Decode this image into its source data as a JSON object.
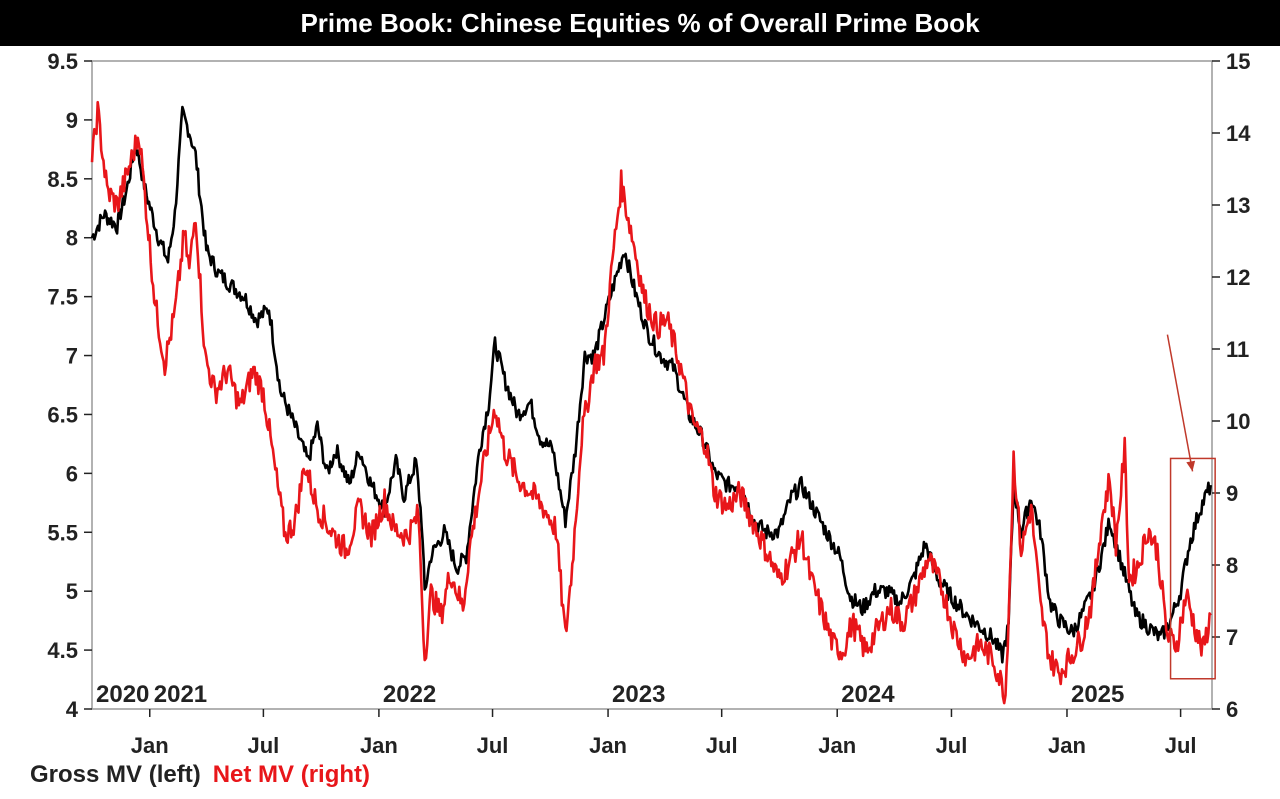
{
  "colors": {
    "gross": "#000000",
    "net": "#e8161a",
    "frame": "#999999",
    "highlight": "#c0392b"
  },
  "chart_data": {
    "type": "line",
    "title": "Prime Book: Chinese Equities % of Overall Prime Book",
    "x_range": [
      "2020-10-01",
      "2025-08-20"
    ],
    "ylim_left": [
      4,
      9.5
    ],
    "ylim_right": [
      6,
      15
    ],
    "yticks_left": [
      "4",
      "4.5",
      "5",
      "5.5",
      "6",
      "6.5",
      "7",
      "7.5",
      "8",
      "8.5",
      "9",
      "9.5"
    ],
    "yticks_right": [
      "6",
      "7",
      "8",
      "9",
      "10",
      "11",
      "12",
      "13",
      "14",
      "15"
    ],
    "month_ticks": [
      {
        "date": "2021-01-01",
        "label": "Jan"
      },
      {
        "date": "2021-07-01",
        "label": "Jul"
      },
      {
        "date": "2022-01-01",
        "label": "Jan"
      },
      {
        "date": "2022-07-01",
        "label": "Jul"
      },
      {
        "date": "2023-01-01",
        "label": "Jan"
      },
      {
        "date": "2023-07-01",
        "label": "Jul"
      },
      {
        "date": "2024-01-01",
        "label": "Jan"
      },
      {
        "date": "2024-07-01",
        "label": "Jul"
      },
      {
        "date": "2025-01-01",
        "label": "Jan"
      },
      {
        "date": "2025-07-01",
        "label": "Jul"
      }
    ],
    "year_labels": [
      {
        "date": "2020-10-01",
        "label": "2020"
      },
      {
        "date": "2021-01-01",
        "label": "2021"
      },
      {
        "date": "2022-01-01",
        "label": "2022"
      },
      {
        "date": "2023-01-01",
        "label": "2023"
      },
      {
        "date": "2024-01-01",
        "label": "2024"
      },
      {
        "date": "2025-01-01",
        "label": "2025"
      }
    ],
    "grid": false,
    "legend_position": "bottom-left",
    "legend": {
      "gross": "Gross MV (left)",
      "net": "Net MV (right)"
    },
    "series": [
      {
        "name": "Gross MV (left)",
        "axis": "left",
        "points": [
          [
            "2020-10-01",
            8.0
          ],
          [
            "2020-10-20",
            8.2
          ],
          [
            "2020-11-10",
            8.1
          ],
          [
            "2020-11-25",
            8.4
          ],
          [
            "2020-12-10",
            8.8
          ],
          [
            "2020-12-25",
            8.4
          ],
          [
            "2021-01-15",
            8.0
          ],
          [
            "2021-01-30",
            7.8
          ],
          [
            "2021-02-10",
            8.2
          ],
          [
            "2021-02-22",
            9.05
          ],
          [
            "2021-03-05",
            8.9
          ],
          [
            "2021-03-15",
            8.7
          ],
          [
            "2021-04-01",
            7.9
          ],
          [
            "2021-04-20",
            7.7
          ],
          [
            "2021-05-10",
            7.6
          ],
          [
            "2021-06-01",
            7.5
          ],
          [
            "2021-06-20",
            7.3
          ],
          [
            "2021-07-10",
            7.4
          ],
          [
            "2021-07-28",
            6.7
          ],
          [
            "2021-08-20",
            6.4
          ],
          [
            "2021-09-10",
            6.1
          ],
          [
            "2021-09-25",
            6.4
          ],
          [
            "2021-10-10",
            6.0
          ],
          [
            "2021-10-25",
            6.2
          ],
          [
            "2021-11-15",
            5.9
          ],
          [
            "2021-12-01",
            6.2
          ],
          [
            "2021-12-20",
            5.9
          ],
          [
            "2022-01-10",
            5.7
          ],
          [
            "2022-01-28",
            6.1
          ],
          [
            "2022-02-10",
            5.8
          ],
          [
            "2022-03-01",
            6.1
          ],
          [
            "2022-03-10",
            5.6
          ],
          [
            "2022-03-15",
            5.0
          ],
          [
            "2022-03-25",
            5.3
          ],
          [
            "2022-04-15",
            5.5
          ],
          [
            "2022-05-05",
            5.2
          ],
          [
            "2022-05-20",
            5.3
          ],
          [
            "2022-06-10",
            6.2
          ],
          [
            "2022-06-25",
            6.6
          ],
          [
            "2022-07-05",
            7.1
          ],
          [
            "2022-07-20",
            6.8
          ],
          [
            "2022-08-10",
            6.5
          ],
          [
            "2022-08-30",
            6.6
          ],
          [
            "2022-09-15",
            6.3
          ],
          [
            "2022-10-05",
            6.2
          ],
          [
            "2022-10-25",
            5.6
          ],
          [
            "2022-11-10",
            6.2
          ],
          [
            "2022-11-25",
            7.0
          ],
          [
            "2022-12-10",
            7.0
          ],
          [
            "2022-12-25",
            7.3
          ],
          [
            "2023-01-10",
            7.6
          ],
          [
            "2023-01-27",
            7.9
          ],
          [
            "2023-02-15",
            7.5
          ],
          [
            "2023-03-05",
            7.2
          ],
          [
            "2023-03-25",
            7.0
          ],
          [
            "2023-04-15",
            6.9
          ],
          [
            "2023-05-10",
            6.5
          ],
          [
            "2023-06-01",
            6.3
          ],
          [
            "2023-06-20",
            6.0
          ],
          [
            "2023-07-10",
            5.9
          ],
          [
            "2023-08-01",
            5.9
          ],
          [
            "2023-08-20",
            5.6
          ],
          [
            "2023-09-10",
            5.5
          ],
          [
            "2023-09-30",
            5.5
          ],
          [
            "2023-10-20",
            5.8
          ],
          [
            "2023-11-05",
            5.9
          ],
          [
            "2023-11-25",
            5.7
          ],
          [
            "2023-12-15",
            5.5
          ],
          [
            "2024-01-05",
            5.3
          ],
          [
            "2024-01-22",
            4.95
          ],
          [
            "2024-02-10",
            4.85
          ],
          [
            "2024-03-01",
            5.0
          ],
          [
            "2024-03-20",
            5.0
          ],
          [
            "2024-04-10",
            4.9
          ],
          [
            "2024-05-01",
            5.1
          ],
          [
            "2024-05-20",
            5.4
          ],
          [
            "2024-06-10",
            5.1
          ],
          [
            "2024-07-01",
            4.95
          ],
          [
            "2024-07-25",
            4.8
          ],
          [
            "2024-08-15",
            4.7
          ],
          [
            "2024-09-05",
            4.6
          ],
          [
            "2024-09-20",
            4.45
          ],
          [
            "2024-09-30",
            4.7
          ],
          [
            "2024-10-08",
            5.9
          ],
          [
            "2024-10-20",
            5.5
          ],
          [
            "2024-11-05",
            5.8
          ],
          [
            "2024-11-20",
            5.5
          ],
          [
            "2024-12-05",
            4.9
          ],
          [
            "2024-12-20",
            4.75
          ],
          [
            "2025-01-10",
            4.65
          ],
          [
            "2025-01-25",
            4.8
          ],
          [
            "2025-02-10",
            5.0
          ],
          [
            "2025-02-25",
            5.3
          ],
          [
            "2025-03-10",
            5.6
          ],
          [
            "2025-03-20",
            5.4
          ],
          [
            "2025-04-05",
            5.1
          ],
          [
            "2025-04-20",
            4.8
          ],
          [
            "2025-05-10",
            4.7
          ],
          [
            "2025-05-30",
            4.6
          ],
          [
            "2025-06-15",
            4.75
          ],
          [
            "2025-07-01",
            5.0
          ],
          [
            "2025-07-15",
            5.4
          ],
          [
            "2025-08-01",
            5.7
          ],
          [
            "2025-08-18",
            5.9
          ]
        ]
      },
      {
        "name": "Net MV (right)",
        "axis": "right",
        "points": [
          [
            "2020-10-01",
            13.6
          ],
          [
            "2020-10-10",
            14.3
          ],
          [
            "2020-10-25",
            13.2
          ],
          [
            "2020-11-10",
            13.0
          ],
          [
            "2020-11-25",
            13.4
          ],
          [
            "2020-12-15",
            14.0
          ],
          [
            "2020-12-28",
            12.8
          ],
          [
            "2021-01-10",
            11.6
          ],
          [
            "2021-01-25",
            10.8
          ],
          [
            "2021-02-10",
            11.5
          ],
          [
            "2021-02-25",
            12.6
          ],
          [
            "2021-03-05",
            12.1
          ],
          [
            "2021-03-15",
            12.9
          ],
          [
            "2021-03-30",
            10.9
          ],
          [
            "2021-04-15",
            10.4
          ],
          [
            "2021-05-05",
            10.7
          ],
          [
            "2021-05-25",
            10.2
          ],
          [
            "2021-06-15",
            10.7
          ],
          [
            "2021-07-01",
            10.4
          ],
          [
            "2021-07-20",
            9.3
          ],
          [
            "2021-08-05",
            8.4
          ],
          [
            "2021-08-20",
            8.6
          ],
          [
            "2021-09-05",
            9.4
          ],
          [
            "2021-09-25",
            8.8
          ],
          [
            "2021-10-15",
            8.5
          ],
          [
            "2021-11-10",
            8.2
          ],
          [
            "2021-12-01",
            8.8
          ],
          [
            "2021-12-20",
            8.4
          ],
          [
            "2022-01-10",
            8.9
          ],
          [
            "2022-01-25",
            8.5
          ],
          [
            "2022-02-15",
            8.4
          ],
          [
            "2022-03-05",
            8.7
          ],
          [
            "2022-03-15",
            6.7
          ],
          [
            "2022-03-25",
            7.6
          ],
          [
            "2022-04-10",
            7.3
          ],
          [
            "2022-04-25",
            7.9
          ],
          [
            "2022-05-15",
            7.4
          ],
          [
            "2022-05-25",
            8.2
          ],
          [
            "2022-06-15",
            9.3
          ],
          [
            "2022-07-05",
            10.2
          ],
          [
            "2022-07-20",
            9.6
          ],
          [
            "2022-08-10",
            9.2
          ],
          [
            "2022-09-01",
            9.0
          ],
          [
            "2022-09-20",
            8.8
          ],
          [
            "2022-10-10",
            8.5
          ],
          [
            "2022-10-25",
            7.0
          ],
          [
            "2022-11-05",
            8.0
          ],
          [
            "2022-11-20",
            9.8
          ],
          [
            "2022-12-10",
            10.8
          ],
          [
            "2022-12-25",
            10.9
          ],
          [
            "2023-01-10",
            12.4
          ],
          [
            "2023-01-22",
            13.3
          ],
          [
            "2023-02-10",
            12.5
          ],
          [
            "2023-02-28",
            11.7
          ],
          [
            "2023-03-20",
            11.3
          ],
          [
            "2023-04-05",
            11.4
          ],
          [
            "2023-04-25",
            10.8
          ],
          [
            "2023-05-15",
            10.0
          ],
          [
            "2023-06-05",
            9.7
          ],
          [
            "2023-06-20",
            9.0
          ],
          [
            "2023-07-10",
            8.8
          ],
          [
            "2023-07-30",
            9.0
          ],
          [
            "2023-08-20",
            8.6
          ],
          [
            "2023-09-10",
            8.2
          ],
          [
            "2023-09-30",
            7.8
          ],
          [
            "2023-10-15",
            8.0
          ],
          [
            "2023-11-05",
            8.4
          ],
          [
            "2023-11-20",
            7.8
          ],
          [
            "2023-12-10",
            7.3
          ],
          [
            "2023-12-25",
            6.9
          ],
          [
            "2024-01-10",
            6.8
          ],
          [
            "2024-01-25",
            7.2
          ],
          [
            "2024-02-15",
            6.8
          ],
          [
            "2024-03-05",
            7.1
          ],
          [
            "2024-03-25",
            7.4
          ],
          [
            "2024-04-15",
            7.2
          ],
          [
            "2024-05-05",
            7.6
          ],
          [
            "2024-05-25",
            8.1
          ],
          [
            "2024-06-15",
            7.7
          ],
          [
            "2024-07-05",
            7.1
          ],
          [
            "2024-07-25",
            6.7
          ],
          [
            "2024-08-15",
            6.9
          ],
          [
            "2024-09-05",
            6.7
          ],
          [
            "2024-09-25",
            6.2
          ],
          [
            "2024-10-02",
            7.8
          ],
          [
            "2024-10-08",
            9.5
          ],
          [
            "2024-10-20",
            8.2
          ],
          [
            "2024-11-05",
            8.8
          ],
          [
            "2024-11-20",
            7.4
          ],
          [
            "2024-12-05",
            6.7
          ],
          [
            "2024-12-20",
            6.5
          ],
          [
            "2025-01-05",
            6.7
          ],
          [
            "2025-01-25",
            7.0
          ],
          [
            "2025-02-10",
            7.5
          ],
          [
            "2025-02-25",
            8.6
          ],
          [
            "2025-03-10",
            9.2
          ],
          [
            "2025-03-20",
            8.3
          ],
          [
            "2025-04-03",
            9.6
          ],
          [
            "2025-04-10",
            7.8
          ],
          [
            "2025-04-25",
            8.0
          ],
          [
            "2025-05-10",
            8.5
          ],
          [
            "2025-05-25",
            8.2
          ],
          [
            "2025-06-10",
            7.0
          ],
          [
            "2025-06-25",
            6.9
          ],
          [
            "2025-07-10",
            7.6
          ],
          [
            "2025-07-25",
            7.1
          ],
          [
            "2025-08-05",
            6.8
          ],
          [
            "2025-08-18",
            7.3
          ]
        ]
      }
    ],
    "annotations": [
      {
        "type": "arrow",
        "from": [
          "2025-06-10",
          11.2
        ],
        "to": [
          "2025-07-20",
          9.3
        ],
        "axis": "right"
      },
      {
        "type": "box",
        "x_from": "2025-06-15",
        "x_to": "2025-08-25",
        "y_from": 6.42,
        "y_to": 9.48,
        "axis": "right"
      }
    ]
  }
}
